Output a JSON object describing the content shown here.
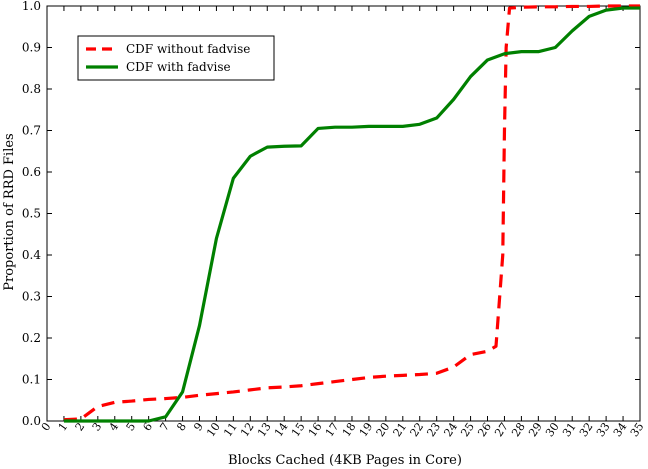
{
  "chart_data": {
    "type": "line",
    "title": "",
    "xlabel": "Blocks Cached (4KB Pages in Core)",
    "ylabel": "Proportion of RRD Files",
    "xlim": [
      0,
      35
    ],
    "ylim": [
      0,
      1.0
    ],
    "x_ticks": [
      "0",
      "1",
      "2",
      "3",
      "4",
      "5",
      "6",
      "7",
      "8",
      "9",
      "10",
      "11",
      "12",
      "13",
      "14",
      "15",
      "16",
      "17",
      "18",
      "19",
      "20",
      "21",
      "22",
      "23",
      "24",
      "25",
      "26",
      "27",
      "28",
      "29",
      "30",
      "31",
      "32",
      "33",
      "34",
      "35"
    ],
    "y_ticks": [
      "0.0",
      "0.1",
      "0.2",
      "0.3",
      "0.4",
      "0.5",
      "0.6",
      "0.7",
      "0.8",
      "0.9",
      "1.0"
    ],
    "grid": false,
    "legend_position": "top-left",
    "series": [
      {
        "name": "CDF without fadvise",
        "color": "#ff0000",
        "style": "dashed",
        "x": [
          1,
          2,
          3,
          4,
          5,
          6,
          7,
          8,
          9,
          10,
          11,
          12,
          13,
          14,
          15,
          16,
          17,
          18,
          19,
          20,
          21,
          22,
          23,
          24,
          25,
          26,
          26.5,
          26.9,
          27.0,
          27.1,
          27.3,
          28,
          29,
          30,
          31,
          32,
          33,
          34,
          35
        ],
        "y": [
          0.003,
          0.005,
          0.035,
          0.045,
          0.048,
          0.052,
          0.054,
          0.057,
          0.062,
          0.066,
          0.07,
          0.075,
          0.08,
          0.082,
          0.085,
          0.09,
          0.095,
          0.1,
          0.105,
          0.108,
          0.11,
          0.112,
          0.115,
          0.13,
          0.16,
          0.168,
          0.18,
          0.4,
          0.7,
          0.9,
          0.995,
          0.997,
          0.998,
          0.998,
          0.999,
          0.999,
          1.0,
          1.0,
          1.0
        ]
      },
      {
        "name": "CDF with fadvise",
        "color": "#008000",
        "style": "solid",
        "x": [
          1,
          2,
          3,
          4,
          5,
          6,
          7,
          8,
          9,
          10,
          11,
          12,
          13,
          14,
          15,
          16,
          17,
          18,
          19,
          20,
          21,
          22,
          23,
          24,
          25,
          26,
          27,
          28,
          29,
          30,
          31,
          32,
          33,
          34,
          35
        ],
        "y": [
          0.0,
          0.0,
          0.0,
          0.0,
          0.0,
          0.0,
          0.01,
          0.07,
          0.23,
          0.44,
          0.585,
          0.638,
          0.66,
          0.662,
          0.663,
          0.705,
          0.708,
          0.708,
          0.71,
          0.71,
          0.71,
          0.715,
          0.73,
          0.775,
          0.83,
          0.87,
          0.885,
          0.89,
          0.89,
          0.9,
          0.94,
          0.975,
          0.99,
          0.995,
          0.995
        ]
      }
    ]
  }
}
